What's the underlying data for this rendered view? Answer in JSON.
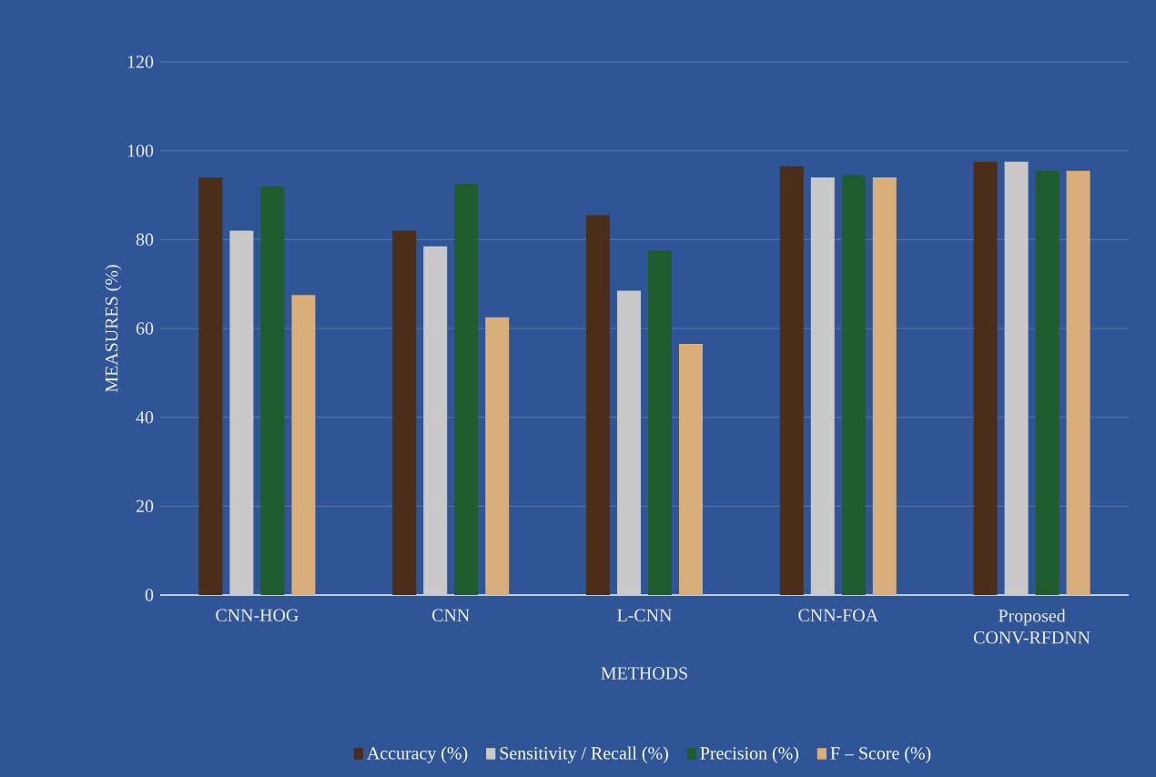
{
  "chart_data": {
    "type": "bar",
    "xlabel": "METHODS",
    "ylabel": "MEASURES (%)",
    "categories": [
      "CNN-HOG",
      "CNN",
      "L-CNN",
      "CNN-FOA",
      "Proposed CONV-RFDNN"
    ],
    "series": [
      {
        "name": "Accuracy (%)",
        "color": "#4a2e1a",
        "values": [
          94,
          82,
          85.5,
          96.5,
          97.5
        ]
      },
      {
        "name": "Sensitivity / Recall (%)",
        "color": "#c9c9c9",
        "values": [
          82,
          78.5,
          68.5,
          94,
          97.5
        ]
      },
      {
        "name": "Precision (%)",
        "color": "#1f5c2e",
        "values": [
          92,
          92.5,
          77.5,
          94.5,
          95.5
        ]
      },
      {
        "name": "F – Score (%)",
        "color": "#d8ae7a",
        "values": [
          67.5,
          62.5,
          56.5,
          94,
          95.5
        ]
      }
    ],
    "ylim": [
      0,
      120
    ],
    "yticks": [
      0,
      20,
      40,
      60,
      80,
      100,
      120
    ],
    "grid": "y",
    "legend": "bottom"
  }
}
